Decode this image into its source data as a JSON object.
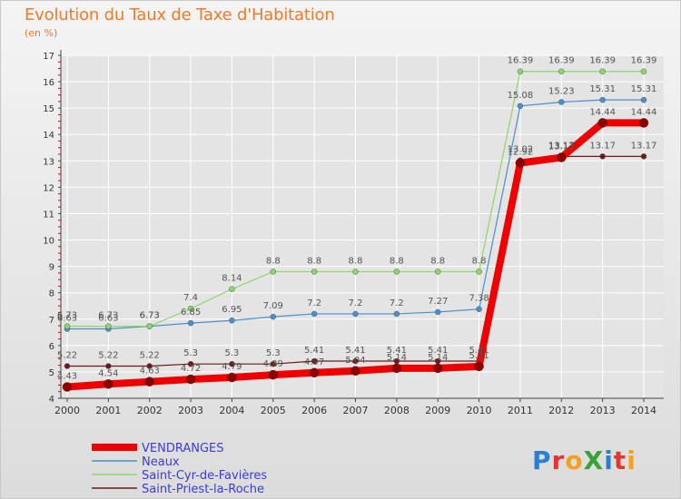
{
  "title": "Evolution du Taux de Taxe d'Habitation",
  "unit_label": "(en %)",
  "logo_text": "ProXiti",
  "colors": {
    "title": "#ee7a2c",
    "axis": "#444444",
    "grid": "#ffffff",
    "tick_red": "#e00000"
  },
  "chart_data": {
    "type": "line",
    "title": "Evolution du Taux de Taxe d'Habitation",
    "ylabel": "(en %)",
    "xlabel": "",
    "x": [
      "2000",
      "2001",
      "2002",
      "2003",
      "2004",
      "2005",
      "2006",
      "2007",
      "2008",
      "2009",
      "2010",
      "2011",
      "2012",
      "2013",
      "2014"
    ],
    "ylim": [
      4,
      17
    ],
    "yticks": [
      4,
      5,
      6,
      7,
      8,
      9,
      10,
      11,
      12,
      13,
      14,
      15,
      16,
      17
    ],
    "grid": true,
    "legend_position": "bottom-left",
    "series": [
      {
        "name": "VENDRANGES",
        "color": "#ee0000",
        "stroke_style": "thick",
        "values": [
          4.43,
          4.54,
          4.63,
          4.72,
          4.79,
          4.89,
          4.97,
          5.04,
          5.14,
          5.14,
          5.21,
          12.92,
          13.13,
          14.44,
          14.44
        ],
        "labels": [
          "4.43",
          "4.54",
          "4.63",
          "4.72",
          "4.79",
          "4.89",
          "4.97",
          "5.04",
          "5.14",
          "5.14",
          "5.21",
          "12.92",
          "13.13",
          "14.44",
          "14.44"
        ]
      },
      {
        "name": "Neaux",
        "color": "#4a8fcc",
        "stroke_style": "thin",
        "values": [
          6.63,
          6.63,
          6.73,
          6.85,
          6.95,
          7.09,
          7.2,
          7.2,
          7.2,
          7.27,
          7.38,
          15.08,
          15.23,
          15.31,
          15.31
        ],
        "labels": [
          "6.63",
          "6.63",
          "6.73",
          "6.85",
          "6.95",
          "7.09",
          "7.2",
          "7.2",
          "7.2",
          "7.27",
          "7.38",
          "15.08",
          "15.23",
          "15.31",
          "15.31"
        ]
      },
      {
        "name": "Saint-Cyr-de-Favières",
        "color": "#8cd66c",
        "stroke_style": "thin",
        "values": [
          6.73,
          6.73,
          6.73,
          7.4,
          8.14,
          8.8,
          8.8,
          8.8,
          8.8,
          8.8,
          8.8,
          16.39,
          16.39,
          16.39,
          16.39
        ],
        "labels": [
          "6.73",
          "6.73",
          "6.73",
          "7.4",
          "8.14",
          "8.8",
          "8.8",
          "8.8",
          "8.8",
          "8.8",
          "8.8",
          "16.39",
          "16.39",
          "16.39",
          "16.39"
        ]
      },
      {
        "name": "Saint-Priest-la-Roche",
        "color": "#6b1a1a",
        "stroke_style": "thin",
        "values": [
          5.22,
          5.22,
          5.22,
          5.3,
          5.3,
          5.3,
          5.41,
          5.41,
          5.41,
          5.41,
          5.41,
          13.02,
          13.17,
          13.17,
          13.17
        ],
        "labels": [
          "5.22",
          "5.22",
          "5.22",
          "5.3",
          "5.3",
          "5.3",
          "5.41",
          "5.41",
          "5.41",
          "5.41",
          "5.41",
          "13.02",
          "13.17",
          "13.17",
          "13.17"
        ]
      }
    ]
  }
}
